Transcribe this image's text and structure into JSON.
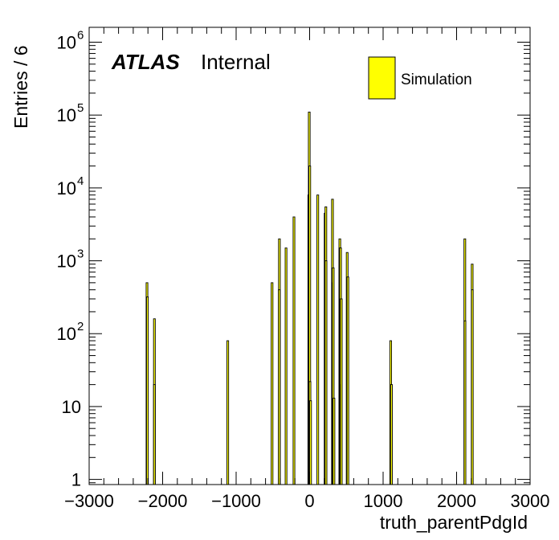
{
  "chart_data": {
    "type": "bar",
    "title": "",
    "xlabel": "truth_parentPdgId",
    "ylabel": "Entries / 6",
    "xlim": [
      -3000,
      3000
    ],
    "ylim": [
      0.85,
      1600000
    ],
    "yscale": "log",
    "grid": false,
    "legend_position": "top-right",
    "experiment_label": "ATLAS",
    "status_label": "Internal",
    "x_ticks": [
      {
        "value": -3000,
        "label": "−3000"
      },
      {
        "value": -2000,
        "label": "−2000"
      },
      {
        "value": -1000,
        "label": "−1000"
      },
      {
        "value": 0,
        "label": "0"
      },
      {
        "value": 1000,
        "label": "1000"
      },
      {
        "value": 2000,
        "label": "2000"
      },
      {
        "value": 3000,
        "label": "3000"
      }
    ],
    "y_ticks": [
      {
        "value": 1,
        "base": "1",
        "exp": ""
      },
      {
        "value": 10,
        "base": "10",
        "exp": ""
      },
      {
        "value": 100,
        "base": "10",
        "exp": "2"
      },
      {
        "value": 1000,
        "base": "10",
        "exp": "3"
      },
      {
        "value": 10000,
        "base": "10",
        "exp": "4"
      },
      {
        "value": 100000,
        "base": "10",
        "exp": "5"
      },
      {
        "value": 1000000,
        "base": "10",
        "exp": "6"
      }
    ],
    "series": [
      {
        "name": "Simulation",
        "color": "#ffff00",
        "points": [
          {
            "x": -2213,
            "y": 500
          },
          {
            "x": -2207,
            "y": 320
          },
          {
            "x": -2112,
            "y": 160
          },
          {
            "x": -2112,
            "y": 20
          },
          {
            "x": -1114,
            "y": 80
          },
          {
            "x": -511,
            "y": 500
          },
          {
            "x": -411,
            "y": 2000
          },
          {
            "x": -413,
            "y": 400
          },
          {
            "x": -321,
            "y": 1500
          },
          {
            "x": -213,
            "y": 4000
          },
          {
            "x": -11,
            "y": 8000
          },
          {
            "x": -5,
            "y": 110000
          },
          {
            "x": 2,
            "y": 20000
          },
          {
            "x": 5,
            "y": 22
          },
          {
            "x": 13,
            "y": 12
          },
          {
            "x": 111,
            "y": 8000
          },
          {
            "x": 211,
            "y": 4500
          },
          {
            "x": 221,
            "y": 5500
          },
          {
            "x": 223,
            "y": 1000
          },
          {
            "x": 311,
            "y": 7000
          },
          {
            "x": 313,
            "y": 500
          },
          {
            "x": 321,
            "y": 800
          },
          {
            "x": 331,
            "y": 13
          },
          {
            "x": 411,
            "y": 2000
          },
          {
            "x": 413,
            "y": 1500
          },
          {
            "x": 421,
            "y": 1500
          },
          {
            "x": 423,
            "y": 20
          },
          {
            "x": 431,
            "y": 300
          },
          {
            "x": 511,
            "y": 1300
          },
          {
            "x": 521,
            "y": 600
          },
          {
            "x": 1103,
            "y": 80
          },
          {
            "x": 1114,
            "y": 20
          },
          {
            "x": 2112,
            "y": 2000
          },
          {
            "x": 2114,
            "y": 150
          },
          {
            "x": 2212,
            "y": 900
          },
          {
            "x": 2214,
            "y": 400
          }
        ]
      }
    ]
  }
}
